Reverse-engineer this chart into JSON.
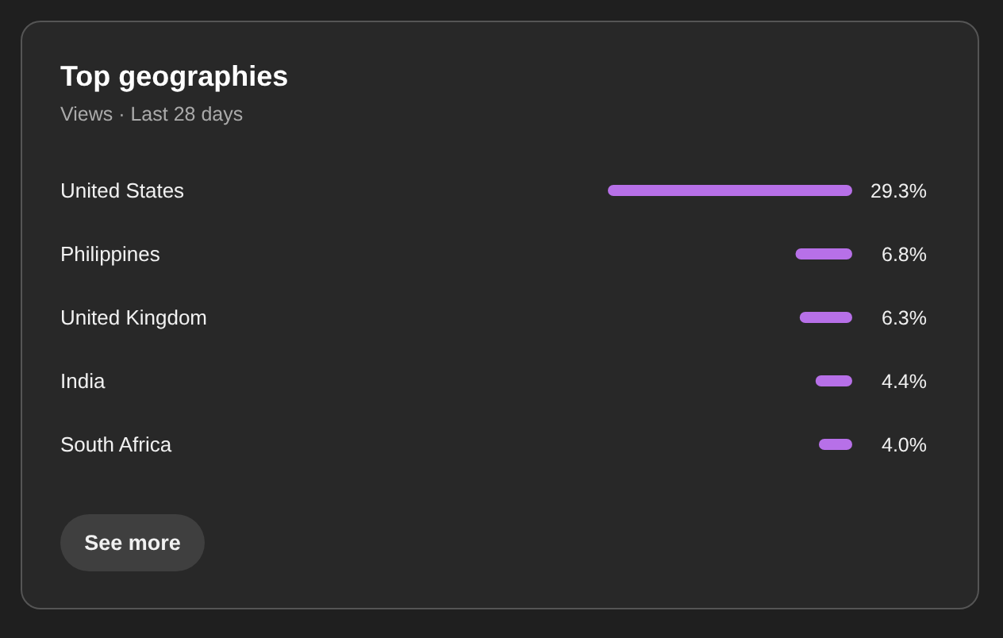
{
  "chart_data": {
    "type": "bar",
    "orientation": "horizontal",
    "title": "Top geographies",
    "subtitle": "Views · Last 28 days",
    "categories": [
      "United States",
      "Philippines",
      "United Kingdom",
      "India",
      "South Africa"
    ],
    "values": [
      29.3,
      6.8,
      6.3,
      4.4,
      4.0
    ],
    "value_labels": [
      "29.3%",
      "6.8%",
      "6.3%",
      "4.4%",
      "4.0%"
    ],
    "color": "#b770e8",
    "annotations": [
      "See more"
    ]
  }
}
